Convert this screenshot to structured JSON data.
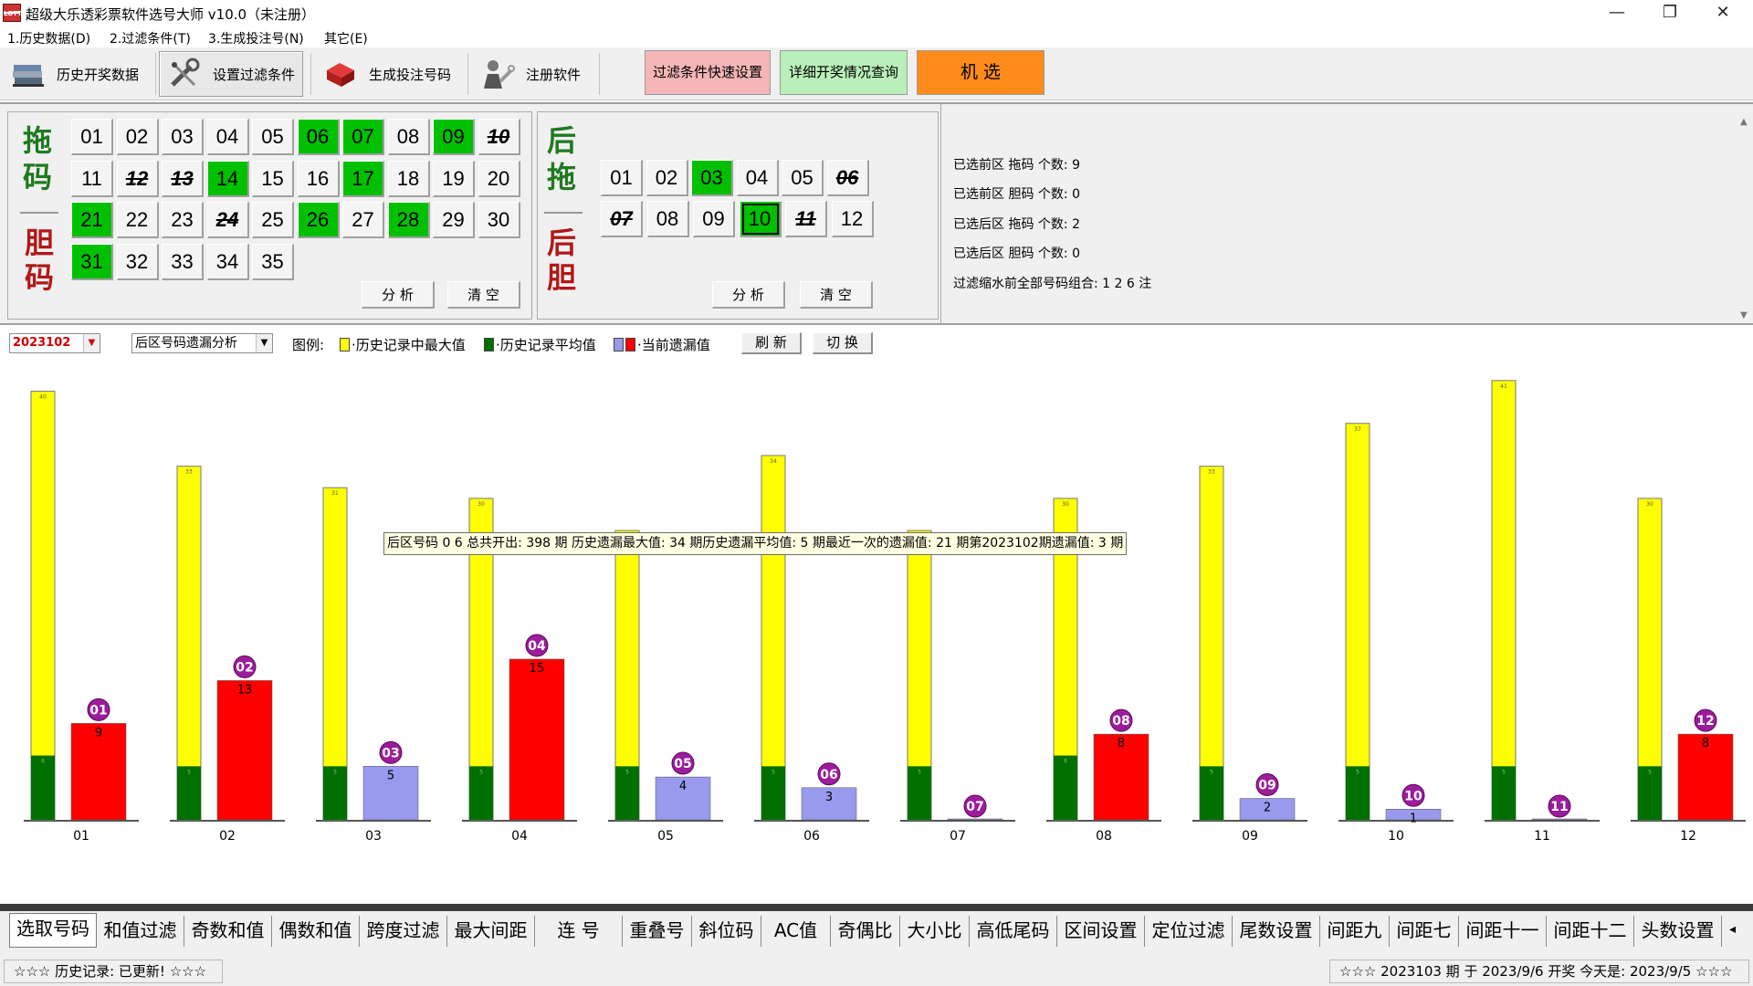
{
  "window": {
    "title": "超级大乐透彩票软件选号大师 v10.0（未注册）",
    "icon_text": "LOTT",
    "minimize": "—",
    "maximize": "❐",
    "close": "✕"
  },
  "menu": [
    "1.历史数据(D)",
    "2.过滤条件(T)",
    "3.生成投注号(N)",
    "其它(E)"
  ],
  "toolbar": {
    "history": "历史开奖数据",
    "filter": "设置过滤条件",
    "generate": "生成投注号码",
    "register": "注册软件",
    "quick_filter": "过滤条件快速设置",
    "detail_query": "详细开奖情况查询",
    "random_pick": "机  选",
    "colors": {
      "quick_filter": "#f4b6b6",
      "detail_query": "#b9f0b9",
      "random_pick": "#ff8c1a"
    }
  },
  "front": {
    "label_top": [
      "拖",
      "码"
    ],
    "label_bottom": [
      "胆",
      "码"
    ],
    "rows": [
      [
        {
          "n": "01",
          "s": 0
        },
        {
          "n": "02",
          "s": 0
        },
        {
          "n": "03",
          "s": 0
        },
        {
          "n": "04",
          "s": 0
        },
        {
          "n": "05",
          "s": 0
        },
        {
          "n": "06",
          "s": 1
        },
        {
          "n": "07",
          "s": 1
        },
        {
          "n": "08",
          "s": 0
        },
        {
          "n": "09",
          "s": 1
        },
        {
          "n": "10",
          "s": 2
        }
      ],
      [
        {
          "n": "11",
          "s": 0
        },
        {
          "n": "12",
          "s": 2
        },
        {
          "n": "13",
          "s": 2
        },
        {
          "n": "14",
          "s": 1
        },
        {
          "n": "15",
          "s": 0
        },
        {
          "n": "16",
          "s": 0
        },
        {
          "n": "17",
          "s": 1
        },
        {
          "n": "18",
          "s": 0
        },
        {
          "n": "19",
          "s": 0
        },
        {
          "n": "20",
          "s": 0
        }
      ],
      [
        {
          "n": "21",
          "s": 1
        },
        {
          "n": "22",
          "s": 0
        },
        {
          "n": "23",
          "s": 0
        },
        {
          "n": "24",
          "s": 2
        },
        {
          "n": "25",
          "s": 0
        },
        {
          "n": "26",
          "s": 1
        },
        {
          "n": "27",
          "s": 0
        },
        {
          "n": "28",
          "s": 1
        },
        {
          "n": "29",
          "s": 0
        },
        {
          "n": "30",
          "s": 0
        }
      ],
      [
        {
          "n": "31",
          "s": 1
        },
        {
          "n": "32",
          "s": 0
        },
        {
          "n": "33",
          "s": 0
        },
        {
          "n": "34",
          "s": 0
        },
        {
          "n": "35",
          "s": 0
        }
      ]
    ],
    "analyze": "分 析",
    "clear": "清 空"
  },
  "back": {
    "label_top": [
      "后",
      "拖"
    ],
    "label_bottom": [
      "后",
      "胆"
    ],
    "rows": [
      [
        {
          "n": "01",
          "s": 0
        },
        {
          "n": "02",
          "s": 0
        },
        {
          "n": "03",
          "s": 1
        },
        {
          "n": "04",
          "s": 0
        },
        {
          "n": "05",
          "s": 0
        },
        {
          "n": "06",
          "s": 2
        }
      ],
      [
        {
          "n": "07",
          "s": 2
        },
        {
          "n": "08",
          "s": 0
        },
        {
          "n": "09",
          "s": 0
        },
        {
          "n": "10",
          "s": 3
        },
        {
          "n": "11",
          "s": 2
        },
        {
          "n": "12",
          "s": 0
        }
      ]
    ],
    "analyze": "分 析",
    "clear": "清 空"
  },
  "stats": [
    "已选前区  拖码  个数:  9",
    "已选前区  胆码  个数:  0",
    "已选后区  拖码  个数:  2",
    "已选后区  胆码  个数:  0",
    "过滤缩水前全部号码组合:  1 2 6  注"
  ],
  "controls": {
    "period": "2023102",
    "analysis": "后区号码遗漏分析",
    "legend_title": "图例:",
    "legend_max": "·历史记录中最大值",
    "legend_avg": "·历史记录平均值",
    "legend_cur": "·当前遗漏值",
    "refresh": "刷 新",
    "switch": "切 换"
  },
  "tooltip": "后区号码 0 6 总共开出: 398 期 历史遗漏最大值: 34 期历史遗漏平均值: 5 期最近一次的遗漏值: 21 期第2023102期遗漏值: 3 期",
  "chart_data": {
    "type": "bar",
    "categories": [
      "01",
      "02",
      "03",
      "04",
      "05",
      "06",
      "07",
      "08",
      "09",
      "10",
      "11",
      "12"
    ],
    "series": [
      {
        "name": "历史记录中最大值",
        "color": "#ffff00",
        "values": [
          40,
          33,
          31,
          30,
          27,
          34,
          27,
          30,
          33,
          37,
          41,
          30
        ]
      },
      {
        "name": "历史记录平均值",
        "color": "#007000",
        "values": [
          6,
          5,
          5,
          5,
          5,
          5,
          5,
          6,
          5,
          5,
          5,
          5
        ]
      },
      {
        "name": "当前遗漏值",
        "values": [
          9,
          13,
          5,
          15,
          4,
          3,
          0,
          8,
          2,
          1,
          0,
          8
        ],
        "colors": [
          "#ff0000",
          "#ff0000",
          "#9999ee",
          "#ff0000",
          "#9999ee",
          "#9999ee",
          "#9999ee",
          "#ff0000",
          "#9999ee",
          "#9999ee",
          "#9999ee",
          "#ff0000"
        ]
      }
    ],
    "ylim": [
      0,
      41
    ],
    "ball_color": "#9c1c9c"
  },
  "tabs": [
    "选取号码",
    "和值过滤",
    "奇数和值",
    "偶数和值",
    "跨度过滤",
    "最大间距",
    "连  号",
    "重叠号",
    "斜位码",
    "AC值",
    "奇偶比",
    "大小比",
    "高低尾码",
    "区间设置",
    "定位过滤",
    "尾数设置",
    "间距九",
    "间距七",
    "间距十一",
    "间距十二",
    "头数设置"
  ],
  "tab_scroll": "◂",
  "status": {
    "left": "☆☆☆  历史记录:  已更新!  ☆☆☆",
    "right": "☆☆☆  2023103 期 于 2023/9/6 开奖    今天是:  2023/9/5  ☆☆☆"
  }
}
